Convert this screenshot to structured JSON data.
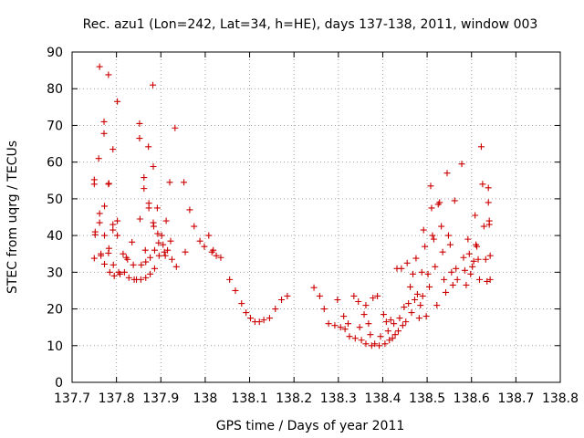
{
  "chart_data": {
    "type": "scatter",
    "title": "Rec. azu1 (Lon=242, Lat=34, h=HE), days 137-138, 2011, window 003",
    "xlabel": "GPS time / Days of year 2011",
    "ylabel": "STEC from uqrg / TECUs",
    "xlim": [
      137.7,
      138.8
    ],
    "ylim": [
      0,
      90
    ],
    "x_ticks": [
      137.7,
      137.8,
      137.9,
      138.0,
      138.1,
      138.2,
      138.3,
      138.4,
      138.5,
      138.6,
      138.7,
      138.8
    ],
    "x_tick_labels": [
      "137.7",
      "137.8",
      "137.9",
      "138",
      "138.1",
      "138.2",
      "138.3",
      "138.4",
      "138.5",
      "138.6",
      "138.7",
      "138.8"
    ],
    "y_ticks": [
      0,
      10,
      20,
      30,
      40,
      50,
      60,
      70,
      80,
      90
    ],
    "y_tick_labels": [
      "0",
      "10",
      "20",
      "30",
      "40",
      "50",
      "60",
      "70",
      "80",
      "90"
    ],
    "grid": true,
    "marker": "+",
    "color": "#cc0000",
    "series": [
      {
        "points": [
          [
            137.75,
            55.2
          ],
          [
            137.75,
            54.0
          ],
          [
            137.752,
            41.0
          ],
          [
            137.752,
            40.2
          ],
          [
            137.75,
            33.8
          ],
          [
            137.762,
            86.0
          ],
          [
            137.76,
            61.0
          ],
          [
            137.762,
            46.0
          ],
          [
            137.762,
            43.5
          ],
          [
            137.765,
            35.0
          ],
          [
            137.765,
            34.5
          ],
          [
            137.772,
            71.0
          ],
          [
            137.772,
            67.8
          ],
          [
            137.773,
            48.0
          ],
          [
            137.773,
            40.0
          ],
          [
            137.773,
            32.2
          ],
          [
            137.782,
            83.8
          ],
          [
            137.782,
            54.0
          ],
          [
            137.783,
            54.2
          ],
          [
            137.783,
            36.5
          ],
          [
            137.782,
            35.2
          ],
          [
            137.785,
            30.0
          ],
          [
            137.792,
            63.5
          ],
          [
            137.792,
            43.0
          ],
          [
            137.792,
            41.5
          ],
          [
            137.793,
            32.0
          ],
          [
            137.795,
            29.0
          ],
          [
            137.802,
            76.5
          ],
          [
            137.802,
            44.0
          ],
          [
            137.802,
            40.0
          ],
          [
            137.805,
            30.0
          ],
          [
            137.808,
            29.5
          ],
          [
            137.815,
            35.0
          ],
          [
            137.818,
            30.0
          ],
          [
            137.822,
            34.0
          ],
          [
            137.825,
            33.5
          ],
          [
            137.828,
            28.5
          ],
          [
            137.835,
            38.2
          ],
          [
            137.838,
            32.0
          ],
          [
            137.84,
            28.0
          ],
          [
            137.845,
            28.0
          ],
          [
            137.852,
            70.5
          ],
          [
            137.852,
            66.5
          ],
          [
            137.853,
            44.5
          ],
          [
            137.856,
            32.0
          ],
          [
            137.855,
            28.0
          ],
          [
            137.862,
            55.8
          ],
          [
            137.862,
            52.8
          ],
          [
            137.865,
            36.0
          ],
          [
            137.866,
            32.8
          ],
          [
            137.866,
            28.5
          ],
          [
            137.872,
            64.2
          ],
          [
            137.873,
            48.8
          ],
          [
            137.873,
            47.5
          ],
          [
            137.876,
            34.0
          ],
          [
            137.876,
            29.5
          ],
          [
            137.882,
            81.0
          ],
          [
            137.883,
            58.8
          ],
          [
            137.883,
            43.5
          ],
          [
            137.884,
            42.5
          ],
          [
            137.886,
            36.0
          ],
          [
            137.886,
            31.0
          ],
          [
            137.892,
            47.5
          ],
          [
            137.893,
            40.5
          ],
          [
            137.895,
            38.0
          ],
          [
            137.896,
            34.5
          ],
          [
            137.902,
            40.0
          ],
          [
            137.905,
            37.5
          ],
          [
            137.908,
            35.5
          ],
          [
            137.91,
            34.5
          ],
          [
            137.912,
            44.0
          ],
          [
            137.915,
            36.0
          ],
          [
            137.92,
            54.5
          ],
          [
            137.922,
            38.5
          ],
          [
            137.925,
            33.5
          ],
          [
            137.932,
            69.3
          ],
          [
            137.935,
            31.5
          ],
          [
            137.952,
            54.5
          ],
          [
            137.955,
            35.5
          ],
          [
            137.965,
            47.0
          ],
          [
            137.975,
            42.5
          ],
          [
            137.988,
            38.5
          ],
          [
            137.998,
            37.0
          ],
          [
            138.008,
            40.0
          ],
          [
            138.015,
            35.5
          ],
          [
            138.018,
            36.0
          ],
          [
            138.025,
            34.5
          ],
          [
            138.035,
            34.0
          ],
          [
            138.055,
            28.0
          ],
          [
            138.068,
            25.0
          ],
          [
            138.082,
            21.5
          ],
          [
            138.092,
            19.0
          ],
          [
            138.102,
            17.5
          ],
          [
            138.112,
            16.5
          ],
          [
            138.122,
            16.5
          ],
          [
            138.132,
            17.0
          ],
          [
            138.145,
            17.5
          ],
          [
            138.158,
            20.0
          ],
          [
            138.172,
            22.5
          ],
          [
            138.185,
            23.5
          ],
          [
            138.245,
            25.8
          ],
          [
            138.258,
            23.5
          ],
          [
            138.268,
            20.0
          ],
          [
            138.278,
            16.0
          ],
          [
            138.292,
            15.5
          ],
          [
            138.298,
            22.5
          ],
          [
            138.305,
            15.0
          ],
          [
            138.312,
            18.0
          ],
          [
            138.315,
            14.5
          ],
          [
            138.322,
            16.0
          ],
          [
            138.325,
            12.5
          ],
          [
            138.335,
            23.5
          ],
          [
            138.338,
            12.0
          ],
          [
            138.345,
            22.0
          ],
          [
            138.348,
            15.0
          ],
          [
            138.352,
            11.5
          ],
          [
            138.358,
            18.5
          ],
          [
            138.362,
            21.0
          ],
          [
            138.362,
            10.5
          ],
          [
            138.368,
            16.0
          ],
          [
            138.372,
            13.0
          ],
          [
            138.375,
            10.0
          ],
          [
            138.378,
            23.0
          ],
          [
            138.382,
            10.5
          ],
          [
            138.388,
            23.5
          ],
          [
            138.392,
            10.0
          ],
          [
            138.395,
            12.5
          ],
          [
            138.402,
            18.5
          ],
          [
            138.405,
            10.5
          ],
          [
            138.408,
            16.5
          ],
          [
            138.412,
            14.0
          ],
          [
            138.415,
            11.5
          ],
          [
            138.418,
            17.0
          ],
          [
            138.422,
            12.0
          ],
          [
            138.425,
            16.0
          ],
          [
            138.428,
            13.0
          ],
          [
            138.432,
            31.0
          ],
          [
            138.435,
            14.0
          ],
          [
            138.438,
            17.5
          ],
          [
            138.442,
            31.0
          ],
          [
            138.445,
            15.5
          ],
          [
            138.448,
            20.5
          ],
          [
            138.452,
            16.5
          ],
          [
            138.455,
            32.5
          ],
          [
            138.458,
            21.5
          ],
          [
            138.462,
            26.0
          ],
          [
            138.465,
            19.0
          ],
          [
            138.468,
            29.5
          ],
          [
            138.472,
            22.5
          ],
          [
            138.475,
            33.8
          ],
          [
            138.478,
            24.0
          ],
          [
            138.482,
            17.5
          ],
          [
            138.485,
            21.0
          ],
          [
            138.488,
            30.0
          ],
          [
            138.49,
            23.5
          ],
          [
            138.492,
            41.5
          ],
          [
            138.495,
            37.0
          ],
          [
            138.498,
            18.0
          ],
          [
            138.502,
            29.5
          ],
          [
            138.505,
            26.0
          ],
          [
            138.508,
            53.5
          ],
          [
            138.51,
            47.5
          ],
          [
            138.512,
            40.0
          ],
          [
            138.515,
            39.0
          ],
          [
            138.518,
            31.5
          ],
          [
            138.522,
            21.0
          ],
          [
            138.525,
            48.5
          ],
          [
            138.528,
            49.0
          ],
          [
            138.532,
            42.5
          ],
          [
            138.535,
            35.5
          ],
          [
            138.538,
            28.0
          ],
          [
            138.542,
            24.5
          ],
          [
            138.545,
            57.0
          ],
          [
            138.548,
            40.0
          ],
          [
            138.552,
            37.5
          ],
          [
            138.555,
            30.0
          ],
          [
            138.558,
            26.5
          ],
          [
            138.562,
            49.5
          ],
          [
            138.565,
            31.0
          ],
          [
            138.568,
            28.0
          ],
          [
            138.578,
            59.5
          ],
          [
            138.582,
            34.0
          ],
          [
            138.585,
            30.5
          ],
          [
            138.588,
            26.5
          ],
          [
            138.592,
            39.0
          ],
          [
            138.595,
            35.0
          ],
          [
            138.598,
            29.5
          ],
          [
            138.602,
            31.5
          ],
          [
            138.605,
            33.0
          ],
          [
            138.608,
            45.5
          ],
          [
            138.61,
            37.5
          ],
          [
            138.612,
            37.0
          ],
          [
            138.615,
            33.5
          ],
          [
            138.618,
            28.0
          ],
          [
            138.622,
            64.2
          ],
          [
            138.625,
            54.0
          ],
          [
            138.628,
            42.5
          ],
          [
            138.632,
            33.5
          ],
          [
            138.635,
            27.5
          ],
          [
            138.638,
            53.0
          ],
          [
            138.638,
            49.0
          ],
          [
            138.64,
            44.0
          ],
          [
            138.64,
            43.0
          ],
          [
            138.642,
            34.5
          ],
          [
            138.642,
            28.0
          ]
        ]
      }
    ]
  }
}
